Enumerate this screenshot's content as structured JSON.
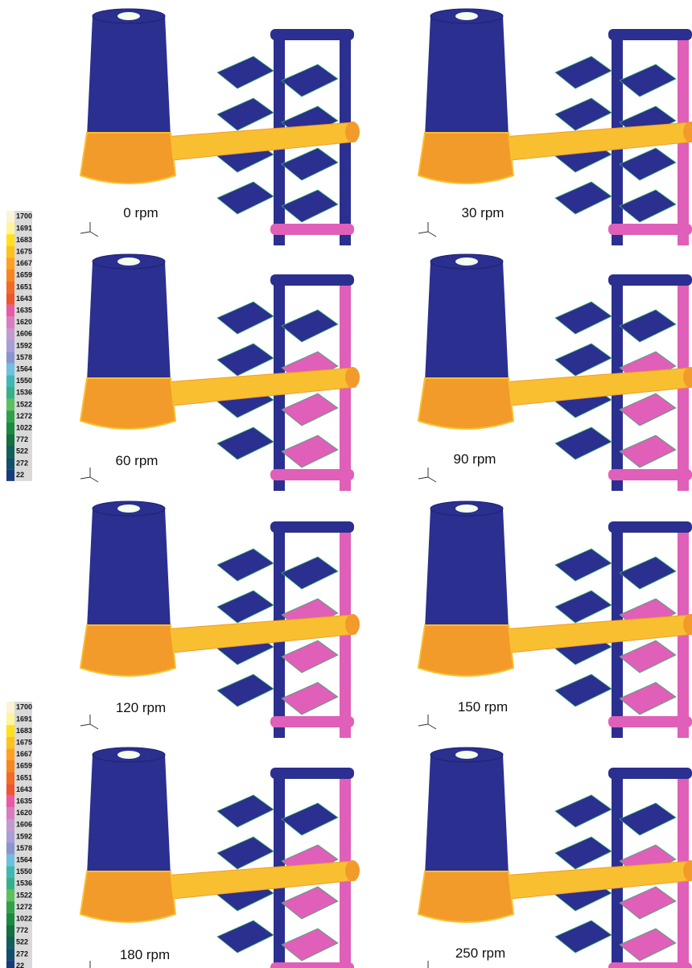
{
  "panels": [
    {
      "label": "0 rpm"
    },
    {
      "label": "30 rpm"
    },
    {
      "label": "60 rpm"
    },
    {
      "label": "90 rpm"
    },
    {
      "label": "120 rpm"
    },
    {
      "label": "150 rpm"
    },
    {
      "label": "180 rpm"
    },
    {
      "label": "250 rpm"
    }
  ],
  "legends": [
    {
      "entries": [
        {
          "label": "1700",
          "color": "#fdf3d6",
          "highlight": true
        },
        {
          "label": "1691",
          "color": "#fff59a"
        },
        {
          "label": "1683",
          "color": "#ffe11a"
        },
        {
          "label": "1675",
          "color": "#ffc218"
        },
        {
          "label": "1667",
          "color": "#ffa020"
        },
        {
          "label": "1659",
          "color": "#f7861f"
        },
        {
          "label": "1651",
          "color": "#f26a25"
        },
        {
          "label": "1643",
          "color": "#ec5630"
        },
        {
          "label": "1635",
          "color": "#e85aa8",
          "highlight": true
        },
        {
          "label": "1620",
          "color": "#d87ec0"
        },
        {
          "label": "1606",
          "color": "#c39ad0"
        },
        {
          "label": "1592",
          "color": "#a99ed6"
        },
        {
          "label": "1578",
          "color": "#8a94d0"
        },
        {
          "label": "1564",
          "color": "#6ec0e0"
        },
        {
          "label": "1550",
          "color": "#3fb8b4"
        },
        {
          "label": "1536",
          "color": "#35b08a"
        },
        {
          "label": "1522",
          "color": "#5cc060",
          "highlight": true
        },
        {
          "label": "1272",
          "color": "#30a048"
        },
        {
          "label": "1022",
          "color": "#1a8a40"
        },
        {
          "label": "772",
          "color": "#137040"
        },
        {
          "label": "522",
          "color": "#0f6058"
        },
        {
          "label": "272",
          "color": "#11506a"
        },
        {
          "label": "22",
          "color": "#173a7a"
        }
      ]
    },
    {
      "entries": [
        {
          "label": "1700",
          "color": "#fdf3d6",
          "highlight": true
        },
        {
          "label": "1691",
          "color": "#fff59a"
        },
        {
          "label": "1683",
          "color": "#ffe11a"
        },
        {
          "label": "1675",
          "color": "#ffc218"
        },
        {
          "label": "1667",
          "color": "#ffa020"
        },
        {
          "label": "1659",
          "color": "#f7861f"
        },
        {
          "label": "1651",
          "color": "#f26a25"
        },
        {
          "label": "1643",
          "color": "#ec5630"
        },
        {
          "label": "1635",
          "color": "#e85aa8",
          "highlight": true
        },
        {
          "label": "1620",
          "color": "#d87ec0"
        },
        {
          "label": "1606",
          "color": "#c39ad0"
        },
        {
          "label": "1592",
          "color": "#a99ed6"
        },
        {
          "label": "1578",
          "color": "#8a94d0"
        },
        {
          "label": "1564",
          "color": "#6ec0e0"
        },
        {
          "label": "1550",
          "color": "#3fb8b4"
        },
        {
          "label": "1536",
          "color": "#35b08a"
        },
        {
          "label": "1522",
          "color": "#5cc060",
          "highlight": true
        },
        {
          "label": "1272",
          "color": "#30a048"
        },
        {
          "label": "1022",
          "color": "#1a8a40"
        },
        {
          "label": "772",
          "color": "#137040"
        },
        {
          "label": "522",
          "color": "#0f6058"
        },
        {
          "label": "272",
          "color": "#11506a"
        },
        {
          "label": "22",
          "color": "#173a7a"
        }
      ]
    }
  ]
}
